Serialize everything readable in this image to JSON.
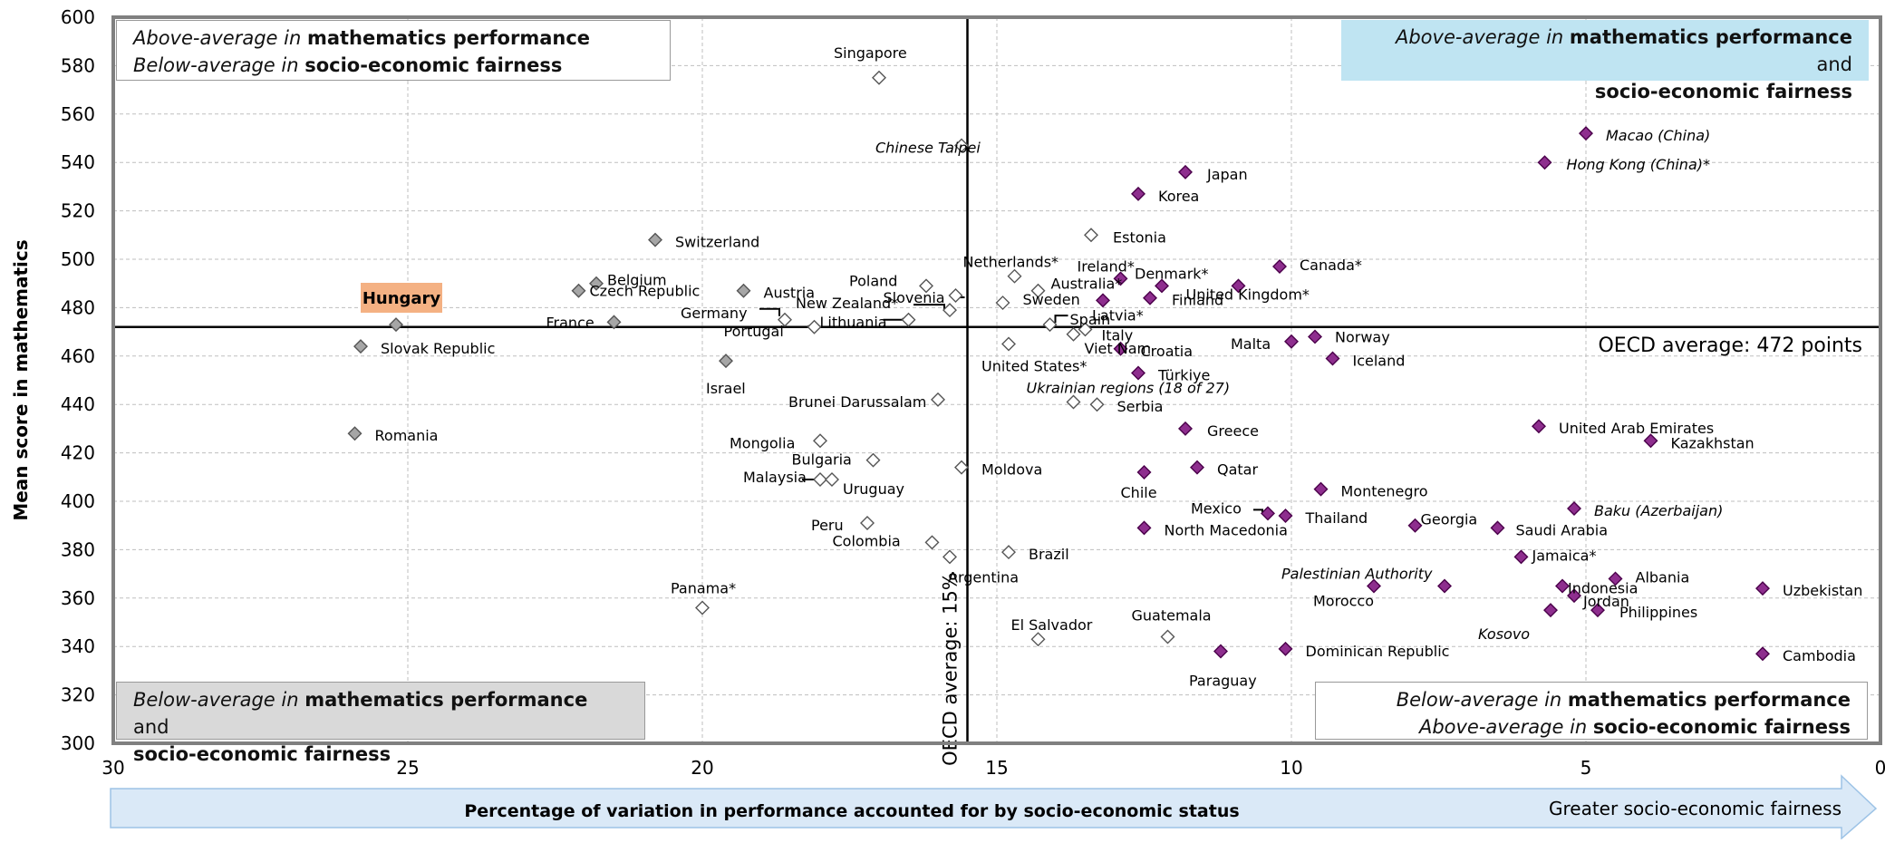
{
  "quadrants": {
    "top_left": {
      "line1_it": "Above-average in ",
      "line1_bd": "mathematics performance",
      "line2_it": "Below-average in ",
      "line2_bd": "socio-economic fairness"
    },
    "top_right": {
      "line1_it": "Above-average in ",
      "line1_bd": "mathematics performance",
      "line1_rest": " and",
      "line2_bd": "socio-economic fairness"
    },
    "bottom_left": {
      "line1_it": "Below-average in ",
      "line1_bd": "mathematics performance",
      "line1_rest": " and",
      "line2_bd": "socio-economic fairness"
    },
    "bottom_right": {
      "line1_it": "Below-average in ",
      "line1_bd": "mathematics performance",
      "line2_it": "Above-average in ",
      "line2_bd": "socio-economic fairness"
    }
  },
  "arrow_labels": {
    "center": "Percentage of variation in performance accounted for by socio-economic status",
    "right": "Greater socio-economic fairness"
  },
  "colors": {
    "significant": "#8e2e8e",
    "not_significant_fill": "#ffffff",
    "oecd_avg_grey": "#a6a6a6",
    "hungary_highlight": "#f4b183",
    "arrow_fill": "#dae9f7"
  },
  "chart_data": {
    "type": "scatter",
    "title": "",
    "xlabel": "",
    "ylabel": "Mean score in mathematics",
    "xlim": [
      30,
      0
    ],
    "ylim": [
      300,
      600
    ],
    "x_ticks": [
      "30",
      "25",
      "20",
      "15",
      "10",
      "5",
      "0"
    ],
    "y_ticks": [
      "300",
      "320",
      "340",
      "360",
      "380",
      "400",
      "420",
      "440",
      "460",
      "480",
      "500",
      "520",
      "540",
      "560",
      "580",
      "600"
    ],
    "grid": true,
    "reference_lines": {
      "horizontal": {
        "y": 472,
        "label": "OECD average: 472 points"
      },
      "vertical": {
        "x": 15.5,
        "label": "OECD average: 15%"
      }
    },
    "points": [
      {
        "name": "Singapore",
        "x": 17.0,
        "y": 575,
        "style": "white",
        "italic": false
      },
      {
        "name": "Chinese Taipei",
        "x": 15.6,
        "y": 547,
        "style": "white",
        "italic": true
      },
      {
        "name": "Switzerland",
        "x": 20.8,
        "y": 508,
        "style": "grey",
        "italic": false
      },
      {
        "name": "Belgium",
        "x": 21.8,
        "y": 490,
        "style": "grey",
        "italic": false
      },
      {
        "name": "Czech Republic",
        "x": 22.1,
        "y": 487,
        "style": "grey",
        "italic": false
      },
      {
        "name": "Austria",
        "x": 19.3,
        "y": 487,
        "style": "grey",
        "italic": false
      },
      {
        "name": "Poland",
        "x": 16.2,
        "y": 489,
        "style": "white",
        "italic": false
      },
      {
        "name": "Slovenia",
        "x": 15.7,
        "y": 485,
        "style": "white",
        "italic": false
      },
      {
        "name": "New Zealand*",
        "x": 15.8,
        "y": 479,
        "style": "white",
        "italic": false
      },
      {
        "name": "Netherlands*",
        "x": 14.7,
        "y": 493,
        "style": "white",
        "italic": false
      },
      {
        "name": "Australia*",
        "x": 14.3,
        "y": 487,
        "style": "white",
        "italic": false
      },
      {
        "name": "Sweden",
        "x": 14.9,
        "y": 482,
        "style": "white",
        "italic": false
      },
      {
        "name": "Ireland*",
        "x": 12.9,
        "y": 492,
        "style": "purple",
        "italic": false
      },
      {
        "name": "Denmark*",
        "x": 12.2,
        "y": 489,
        "style": "purple",
        "italic": false
      },
      {
        "name": "Latvia*",
        "x": 13.2,
        "y": 483,
        "style": "purple",
        "italic": false
      },
      {
        "name": "Finland",
        "x": 12.4,
        "y": 484,
        "style": "purple",
        "italic": false
      },
      {
        "name": "Canada*",
        "x": 10.2,
        "y": 497,
        "style": "purple",
        "italic": false
      },
      {
        "name": "United Kingdom*",
        "x": 10.9,
        "y": 489,
        "style": "purple",
        "italic": false
      },
      {
        "name": "Estonia",
        "x": 13.4,
        "y": 510,
        "style": "white",
        "italic": false
      },
      {
        "name": "Japan",
        "x": 11.8,
        "y": 536,
        "style": "purple",
        "italic": false
      },
      {
        "name": "Korea",
        "x": 12.6,
        "y": 527,
        "style": "purple",
        "italic": false
      },
      {
        "name": "Macao (China)",
        "x": 5.0,
        "y": 552,
        "style": "purple",
        "italic": true
      },
      {
        "name": "Hong Kong (China)*",
        "x": 5.7,
        "y": 540,
        "style": "purple",
        "italic": true
      },
      {
        "name": "Hungary",
        "x": 25.2,
        "y": 473,
        "style": "grey",
        "italic": false,
        "highlight": true
      },
      {
        "name": "France",
        "x": 21.5,
        "y": 474,
        "style": "grey",
        "italic": false
      },
      {
        "name": "Slovak Republic",
        "x": 25.8,
        "y": 464,
        "style": "grey",
        "italic": false
      },
      {
        "name": "Germany",
        "x": 18.6,
        "y": 475,
        "style": "white",
        "italic": false
      },
      {
        "name": "Portugal",
        "x": 18.1,
        "y": 472,
        "style": "white",
        "italic": false
      },
      {
        "name": "Lithuania",
        "x": 16.5,
        "y": 475,
        "style": "white",
        "italic": false
      },
      {
        "name": "Spain",
        "x": 14.1,
        "y": 473,
        "style": "white",
        "italic": false
      },
      {
        "name": "Italy",
        "x": 13.5,
        "y": 471,
        "style": "white",
        "italic": false
      },
      {
        "name": "Viet Nam",
        "x": 13.7,
        "y": 469,
        "style": "white",
        "italic": false
      },
      {
        "name": "United States*",
        "x": 14.8,
        "y": 465,
        "style": "white",
        "italic": false
      },
      {
        "name": "Croatia",
        "x": 12.9,
        "y": 463,
        "style": "purple",
        "italic": false
      },
      {
        "name": "Malta",
        "x": 10.0,
        "y": 466,
        "style": "purple",
        "italic": false
      },
      {
        "name": "Norway",
        "x": 9.6,
        "y": 468,
        "style": "purple",
        "italic": false
      },
      {
        "name": "Iceland",
        "x": 9.3,
        "y": 459,
        "style": "purple",
        "italic": false
      },
      {
        "name": "Türkiye",
        "x": 12.6,
        "y": 453,
        "style": "purple",
        "italic": false
      },
      {
        "name": "Israel",
        "x": 19.6,
        "y": 458,
        "style": "grey",
        "italic": false
      },
      {
        "name": "Brunei Darussalam",
        "x": 16.0,
        "y": 442,
        "style": "white",
        "italic": false
      },
      {
        "name": "Ukrainian regions (18 of 27)",
        "x": 13.7,
        "y": 441,
        "style": "white",
        "italic": true
      },
      {
        "name": "Serbia",
        "x": 13.3,
        "y": 440,
        "style": "white",
        "italic": false
      },
      {
        "name": "Romania",
        "x": 25.9,
        "y": 428,
        "style": "grey",
        "italic": false
      },
      {
        "name": "Greece",
        "x": 11.8,
        "y": 430,
        "style": "purple",
        "italic": false
      },
      {
        "name": "United Arab Emirates",
        "x": 5.8,
        "y": 431,
        "style": "purple",
        "italic": false
      },
      {
        "name": "Kazakhstan",
        "x": 3.9,
        "y": 425,
        "style": "purple",
        "italic": false
      },
      {
        "name": "Mongolia",
        "x": 18.0,
        "y": 425,
        "style": "white",
        "italic": false
      },
      {
        "name": "Bulgaria",
        "x": 17.1,
        "y": 417,
        "style": "white",
        "italic": false
      },
      {
        "name": "Moldova",
        "x": 15.6,
        "y": 414,
        "style": "white",
        "italic": false
      },
      {
        "name": "Malaysia",
        "x": 18.0,
        "y": 409,
        "style": "white",
        "italic": false
      },
      {
        "name": "Uruguay",
        "x": 17.8,
        "y": 409,
        "style": "white",
        "italic": false
      },
      {
        "name": "Qatar",
        "x": 11.6,
        "y": 414,
        "style": "purple",
        "italic": false
      },
      {
        "name": "Chile",
        "x": 12.5,
        "y": 412,
        "style": "purple",
        "italic": false
      },
      {
        "name": "Montenegro",
        "x": 9.5,
        "y": 405,
        "style": "purple",
        "italic": false
      },
      {
        "name": "Baku (Azerbaijan)",
        "x": 5.2,
        "y": 397,
        "style": "purple",
        "italic": true
      },
      {
        "name": "Mexico",
        "x": 10.4,
        "y": 395,
        "style": "purple",
        "italic": false
      },
      {
        "name": "Thailand",
        "x": 10.1,
        "y": 394,
        "style": "purple",
        "italic": false
      },
      {
        "name": "Georgia",
        "x": 7.9,
        "y": 390,
        "style": "purple",
        "italic": false
      },
      {
        "name": "Saudi Arabia",
        "x": 6.5,
        "y": 389,
        "style": "purple",
        "italic": false
      },
      {
        "name": "North Macedonia",
        "x": 12.5,
        "y": 389,
        "style": "purple",
        "italic": false
      },
      {
        "name": "Peru",
        "x": 17.2,
        "y": 391,
        "style": "white",
        "italic": false
      },
      {
        "name": "Colombia",
        "x": 16.1,
        "y": 383,
        "style": "white",
        "italic": false
      },
      {
        "name": "Brazil",
        "x": 14.8,
        "y": 379,
        "style": "white",
        "italic": false
      },
      {
        "name": "Argentina",
        "x": 15.8,
        "y": 377,
        "style": "white",
        "italic": false
      },
      {
        "name": "Jamaica*",
        "x": 6.1,
        "y": 377,
        "style": "purple",
        "italic": false
      },
      {
        "name": "Albania",
        "x": 4.5,
        "y": 368,
        "style": "purple",
        "italic": false
      },
      {
        "name": "Palestinian Authority",
        "x": 8.6,
        "y": 365,
        "style": "purple",
        "italic": true
      },
      {
        "name": "Morocco",
        "x": 7.4,
        "y": 365,
        "style": "purple",
        "italic": false
      },
      {
        "name": "Indonesia",
        "x": 5.4,
        "y": 365,
        "style": "purple",
        "italic": false
      },
      {
        "name": "Jordan",
        "x": 5.2,
        "y": 361,
        "style": "purple",
        "italic": false
      },
      {
        "name": "Kosovo",
        "x": 5.6,
        "y": 355,
        "style": "purple",
        "italic": true
      },
      {
        "name": "Philippines",
        "x": 4.8,
        "y": 355,
        "style": "purple",
        "italic": false
      },
      {
        "name": "Uzbekistan",
        "x": 2.0,
        "y": 364,
        "style": "purple",
        "italic": false
      },
      {
        "name": "Panama*",
        "x": 20.0,
        "y": 356,
        "style": "white",
        "italic": false
      },
      {
        "name": "El Salvador",
        "x": 14.3,
        "y": 343,
        "style": "white",
        "italic": false
      },
      {
        "name": "Guatemala",
        "x": 12.1,
        "y": 344,
        "style": "white",
        "italic": false
      },
      {
        "name": "Dominican Republic",
        "x": 10.1,
        "y": 339,
        "style": "purple",
        "italic": false
      },
      {
        "name": "Paraguay",
        "x": 11.2,
        "y": 338,
        "style": "purple",
        "italic": false
      },
      {
        "name": "Cambodia",
        "x": 2.0,
        "y": 337,
        "style": "purple",
        "italic": false
      }
    ]
  }
}
